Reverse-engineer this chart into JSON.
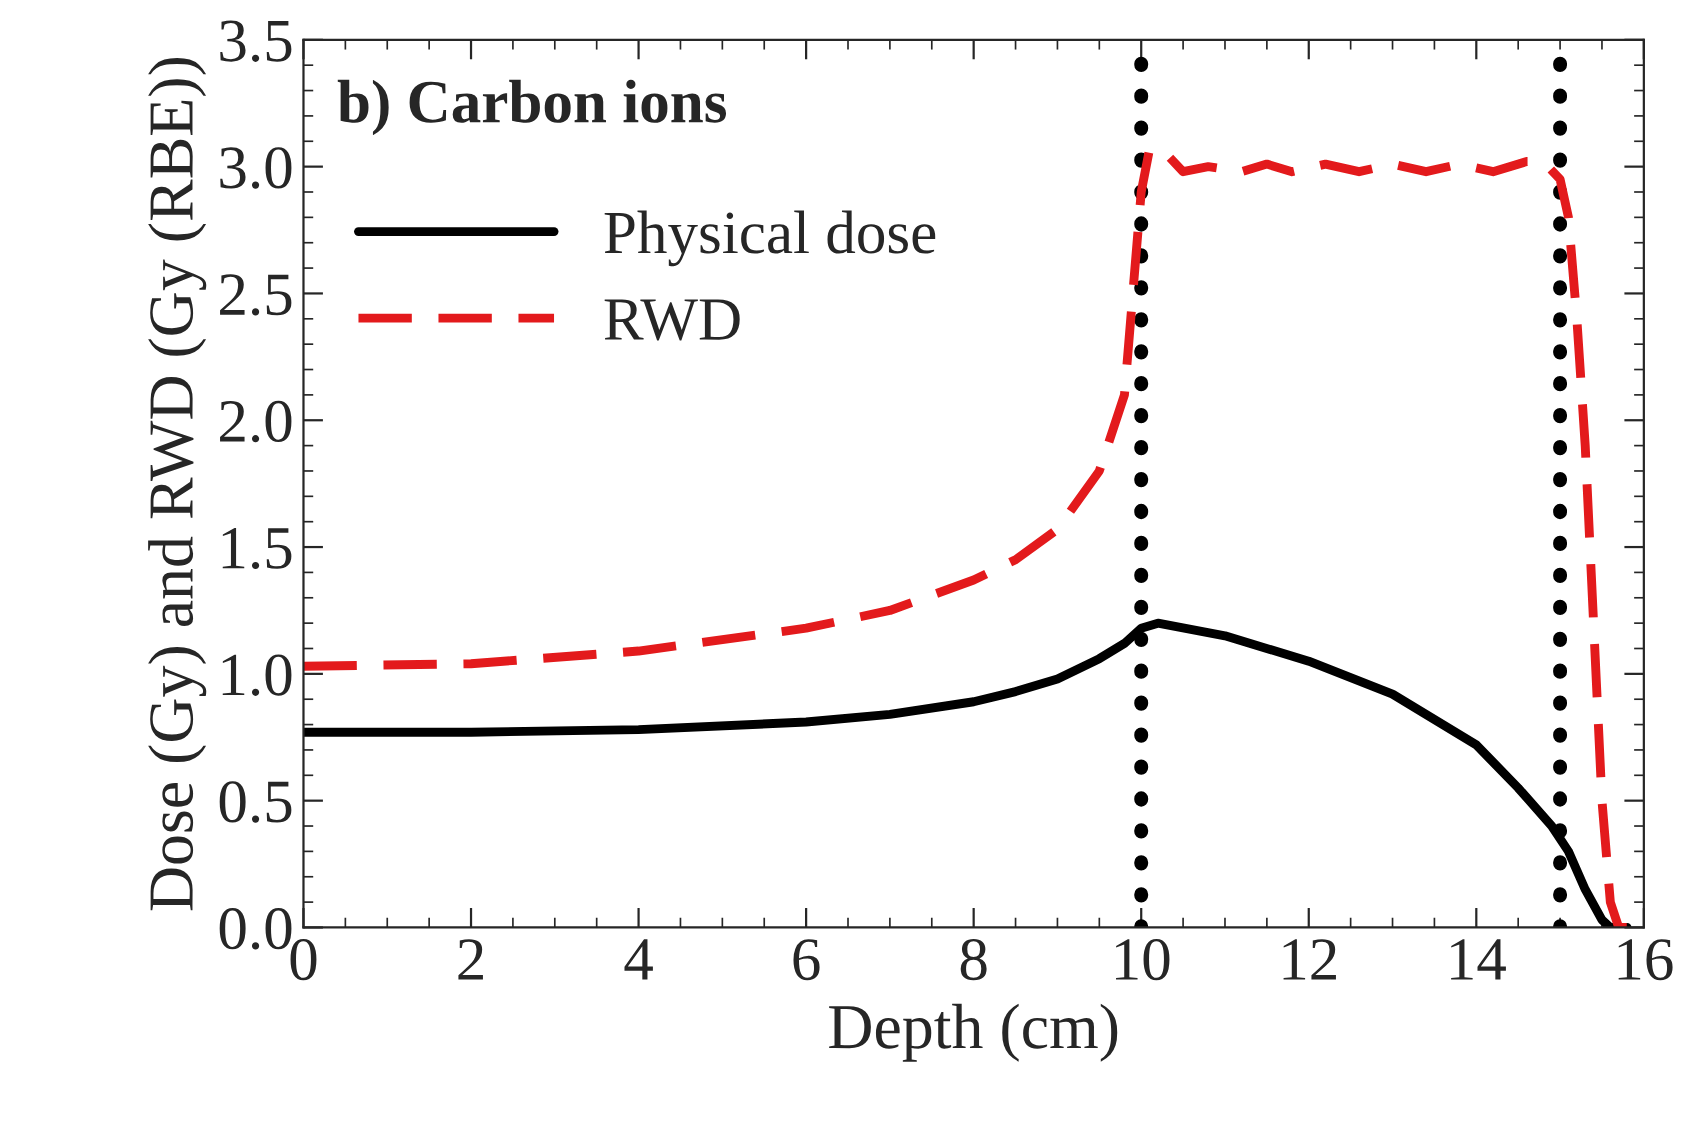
{
  "chart_data": {
    "type": "line",
    "xlabel": "Depth (cm)",
    "ylabel": "Dose (Gy) and RWD (Gy (RBE))",
    "annotations": [
      "b) Carbon ions"
    ],
    "xlim": [
      0,
      16
    ],
    "xticks": [
      0,
      2,
      4,
      6,
      8,
      10,
      12,
      14,
      16
    ],
    "ylim": [
      0,
      3.5
    ],
    "yticks": [
      {
        "value": 0,
        "label": "0.0"
      },
      0.5,
      {
        "value": 1,
        "label": "1.0"
      },
      1.5,
      {
        "value": 2,
        "label": "2.0"
      },
      2.5,
      {
        "value": 3,
        "label": "3.0"
      },
      3.5
    ],
    "grid": false,
    "legend": "top left",
    "series": [
      {
        "name": "Physical dose",
        "color": "#000000",
        "line_style": "solid",
        "x": [
          0,
          2,
          4,
          6,
          7,
          8,
          8.5,
          9,
          9.5,
          9.8,
          10,
          10.2,
          11,
          12,
          13,
          14,
          14.5,
          14.9,
          15.1,
          15.3,
          15.5,
          15.6,
          15.8
        ],
        "values": [
          0.77,
          0.77,
          0.78,
          0.81,
          0.84,
          0.89,
          0.93,
          0.98,
          1.06,
          1.12,
          1.18,
          1.2,
          1.15,
          1.05,
          0.92,
          0.72,
          0.55,
          0.4,
          0.3,
          0.15,
          0.03,
          0,
          0
        ]
      },
      {
        "name": "RWD",
        "color": "#e31a1c",
        "line_style": "dashed",
        "x": [
          0,
          2,
          4,
          6,
          7,
          8,
          8.5,
          9,
          9.5,
          9.8,
          9.9,
          10,
          10.1,
          10.3,
          10.5,
          10.8,
          11.2,
          11.5,
          11.8,
          12.2,
          12.6,
          13,
          13.4,
          13.8,
          14.2,
          14.6,
          14.8,
          15,
          15.1,
          15.2,
          15.3,
          15.4,
          15.5,
          15.6,
          15.7,
          15.8
        ],
        "values": [
          1.03,
          1.04,
          1.09,
          1.18,
          1.25,
          1.37,
          1.45,
          1.57,
          1.8,
          2.1,
          2.5,
          2.9,
          3.07,
          3.05,
          2.98,
          3.0,
          2.98,
          3.01,
          2.98,
          3.01,
          2.98,
          3.01,
          2.98,
          3.01,
          2.98,
          3.02,
          3.02,
          2.95,
          2.8,
          2.4,
          1.9,
          1.2,
          0.5,
          0.1,
          0,
          0
        ]
      }
    ],
    "ref_lines": [
      {
        "axis": "x",
        "value": 10,
        "color": "#000000",
        "line_style": "dotted"
      },
      {
        "axis": "x",
        "value": 15,
        "color": "#000000",
        "line_style": "dotted"
      }
    ]
  }
}
